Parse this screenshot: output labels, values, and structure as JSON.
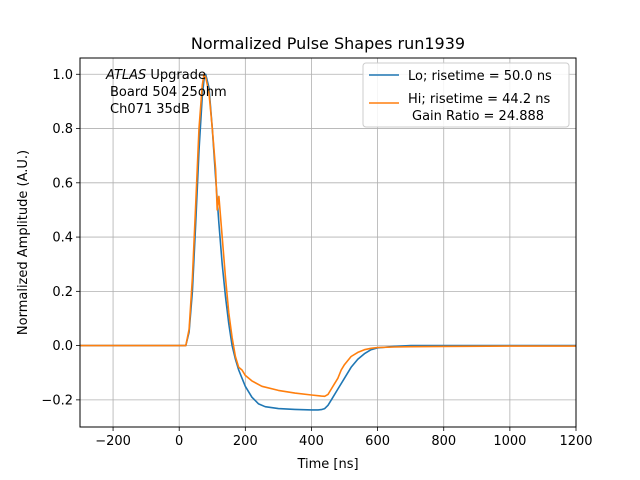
{
  "chart_data": {
    "type": "line",
    "title": "Normalized Pulse Shapes run1939",
    "xlabel": "Time [ns]",
    "ylabel": "Normalized Amplitude (A.U.)",
    "xlim": [
      -300,
      1200
    ],
    "ylim": [
      -0.3,
      1.06
    ],
    "xticks": [
      -200,
      0,
      200,
      400,
      600,
      800,
      1000,
      1200
    ],
    "xtick_labels": [
      "−200",
      "0",
      "200",
      "400",
      "600",
      "800",
      "1000",
      "1200"
    ],
    "yticks": [
      -0.2,
      0.0,
      0.2,
      0.4,
      0.6,
      0.8,
      1.0
    ],
    "ytick_labels": [
      "−0.2",
      "0.0",
      "0.2",
      "0.4",
      "0.6",
      "0.8",
      "1.0"
    ],
    "grid": true,
    "legend_position": "top-right",
    "annotation": {
      "line1_italic": "ATLAS",
      "line1_rest": " Upgrade",
      "line2": "Board 504 25ohm",
      "line3": "Ch071 35dB"
    },
    "series": [
      {
        "name": "Lo; risetime = 50.0 ns",
        "color": "#1f77b4",
        "x": [
          -300,
          0,
          20,
          30,
          40,
          50,
          60,
          70,
          75,
          80,
          90,
          100,
          110,
          120,
          130,
          140,
          150,
          160,
          170,
          180,
          190,
          200,
          220,
          240,
          260,
          300,
          350,
          400,
          420,
          430,
          440,
          450,
          460,
          480,
          500,
          520,
          540,
          560,
          580,
          600,
          650,
          700,
          800,
          1000,
          1200
        ],
        "y": [
          0.0,
          0.0,
          0.0,
          0.05,
          0.2,
          0.45,
          0.72,
          0.92,
          0.98,
          1.0,
          0.95,
          0.8,
          0.62,
          0.45,
          0.3,
          0.18,
          0.08,
          0.0,
          -0.05,
          -0.09,
          -0.12,
          -0.15,
          -0.19,
          -0.215,
          -0.225,
          -0.232,
          -0.235,
          -0.237,
          -0.237,
          -0.236,
          -0.232,
          -0.22,
          -0.2,
          -0.16,
          -0.12,
          -0.08,
          -0.05,
          -0.03,
          -0.015,
          -0.008,
          -0.003,
          0.0,
          0.0,
          0.0,
          0.0
        ]
      },
      {
        "name": "Hi; risetime = 44.2 ns",
        "name_line2": "Gain Ratio = 24.888",
        "color": "#ff7f0e",
        "x": [
          -300,
          0,
          20,
          30,
          40,
          50,
          60,
          70,
          75,
          80,
          90,
          100,
          110,
          115,
          120,
          130,
          140,
          150,
          160,
          170,
          180,
          190,
          200,
          220,
          250,
          300,
          350,
          400,
          430,
          440,
          450,
          460,
          470,
          480,
          490,
          500,
          520,
          540,
          560,
          580,
          600,
          650,
          700,
          800,
          1000,
          1200
        ],
        "y": [
          0.0,
          0.0,
          0.0,
          0.06,
          0.25,
          0.52,
          0.8,
          0.96,
          1.0,
          0.99,
          0.93,
          0.8,
          0.65,
          0.5,
          0.55,
          0.4,
          0.25,
          0.12,
          0.03,
          -0.04,
          -0.08,
          -0.09,
          -0.11,
          -0.13,
          -0.15,
          -0.165,
          -0.175,
          -0.182,
          -0.186,
          -0.187,
          -0.18,
          -0.16,
          -0.14,
          -0.12,
          -0.09,
          -0.07,
          -0.04,
          -0.025,
          -0.015,
          -0.01,
          -0.007,
          -0.005,
          -0.004,
          -0.003,
          -0.002,
          -0.002
        ]
      }
    ]
  }
}
